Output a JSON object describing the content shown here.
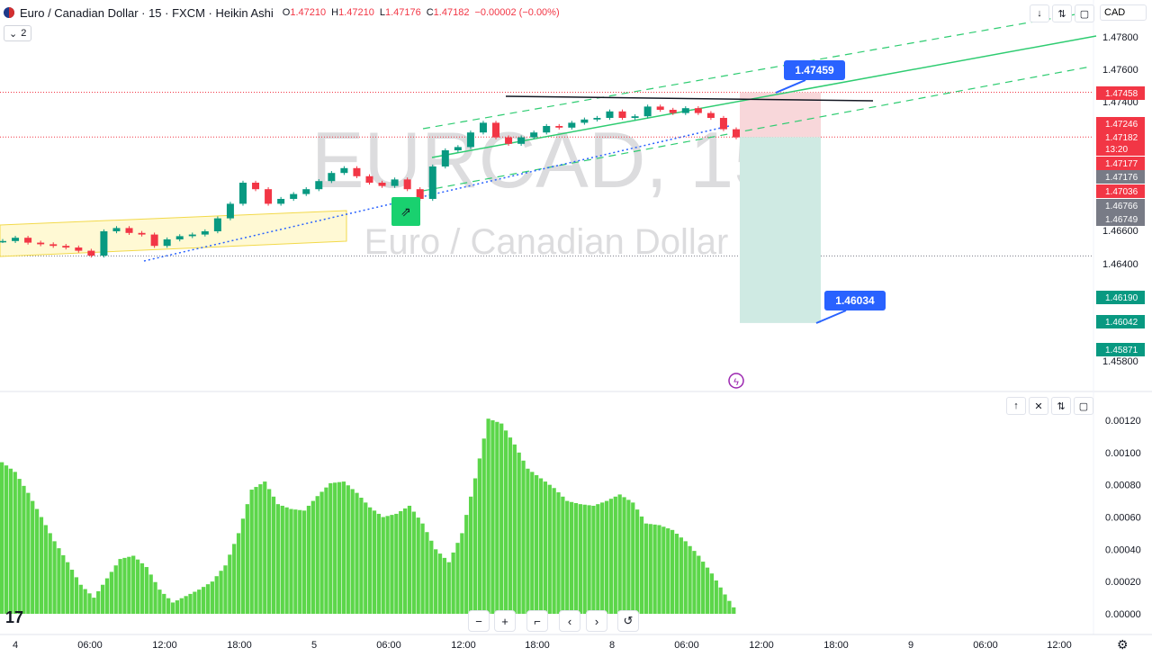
{
  "header": {
    "title": "Euro / Canadian Dollar · 15 · FXCM · Heikin Ashi",
    "open_label": "O",
    "open": "1.47210",
    "high_label": "H",
    "high": "1.47210",
    "low_label": "L",
    "low": "1.47176",
    "close_label": "C",
    "close": "1.47182",
    "change": "−0.00002 (−0.00%)",
    "indicators_count": "2",
    "currency": "CAD"
  },
  "watermark": {
    "symbol": "EURCAD, 15",
    "name": "Euro / Canadian Dollar"
  },
  "icons": {
    "down": "down-arrow-icon",
    "collapse": "collapse-icon",
    "maximize": "maximize-icon",
    "up": "up-arrow-icon",
    "close": "close-icon",
    "lightning": "lightning-icon",
    "logo": "tradingview-logo",
    "settings": "gear-icon"
  },
  "colors": {
    "up": "#089981",
    "down": "#f23645",
    "histogram": "#5cd64a",
    "channel": "#2ecc71",
    "label": "#2962ff",
    "target": "#cfeae3",
    "stop": "#f8d7da",
    "range": "#fff5b8"
  },
  "chart_data": [
    {
      "type": "candlestick",
      "style": "Heikin Ashi",
      "symbol": "EURCAD",
      "interval": "15",
      "ylim": [
        1.4576,
        1.4811
      ],
      "y_ticks": [
        "1.47800",
        "1.47600",
        "1.47400",
        "1.46600",
        "1.46400",
        "1.45800"
      ],
      "x_ticks": [
        "4",
        "06:00",
        "12:00",
        "18:00",
        "5",
        "06:00",
        "12:00",
        "18:00",
        "8",
        "06:00",
        "12:00",
        "18:00",
        "9",
        "06:00",
        "12:00"
      ],
      "price_tags": [
        {
          "value": "1.47458",
          "color": "#f23645"
        },
        {
          "value": "1.47246",
          "color": "#f23645"
        },
        {
          "value": "1.47182",
          "color": "#f23645"
        },
        {
          "value": "13:20",
          "color": "#f23645"
        },
        {
          "value": "1.47177",
          "color": "#f23645"
        },
        {
          "value": "1.47176",
          "color": "#787b86"
        },
        {
          "value": "1.47036",
          "color": "#f23645"
        },
        {
          "value": "1.46766",
          "color": "#787b86"
        },
        {
          "value": "1.46749",
          "color": "#787b86"
        },
        {
          "value": "1.46190",
          "color": "#089981"
        },
        {
          "value": "1.46042",
          "color": "#089981"
        },
        {
          "value": "1.45871",
          "color": "#089981"
        }
      ],
      "annotations": [
        {
          "text": "1.47459",
          "type": "callout"
        },
        {
          "text": "1.46034",
          "type": "callout"
        }
      ],
      "series": [
        {
          "name": "",
          "values": [
            1.4654,
            1.4656,
            1.4653,
            1.4652,
            1.4651,
            1.465,
            1.4648,
            1.4645,
            1.466,
            1.4662,
            1.4659,
            1.4658,
            1.4651,
            1.4655,
            1.4657,
            1.4658,
            1.466,
            1.4668,
            1.4677,
            1.469,
            1.4686,
            1.4677,
            1.468,
            1.4683,
            1.4686,
            1.4691,
            1.4696,
            1.4699,
            1.4694,
            1.469,
            1.4688,
            1.4692,
            1.4686,
            1.468,
            1.47,
            1.471,
            1.4712,
            1.4721,
            1.4727,
            1.4718,
            1.4714,
            1.4718,
            1.4721,
            1.4725,
            1.4724,
            1.4727,
            1.4729,
            1.473,
            1.4734,
            1.473,
            1.4731,
            1.4737,
            1.4735,
            1.4733,
            1.4736,
            1.4733,
            1.473,
            1.4723,
            1.4718
          ]
        }
      ]
    },
    {
      "type": "bar",
      "name": "",
      "ylim": [
        -5e-05,
        0.00126
      ],
      "y_ticks": [
        "0.00120",
        "0.00100",
        "0.00080",
        "0.00060",
        "0.00040",
        "0.00020",
        "0.00000"
      ],
      "values": [
        0.00094,
        0.00088,
        0.00075,
        0.0006,
        0.00045,
        0.00032,
        0.00018,
        0.0001,
        0.00022,
        0.00034,
        0.00036,
        0.00029,
        0.00015,
        7e-05,
        0.00011,
        0.00015,
        0.0002,
        0.0003,
        0.0005,
        0.00077,
        0.00082,
        0.00068,
        0.00065,
        0.00064,
        0.00073,
        0.00081,
        0.00082,
        0.00075,
        0.00066,
        0.0006,
        0.00062,
        0.00067,
        0.00056,
        0.0004,
        0.00032,
        0.0005,
        0.00084,
        0.00121,
        0.00118,
        0.00105,
        0.0009,
        0.00084,
        0.00078,
        0.0007,
        0.00068,
        0.00067,
        0.0007,
        0.00074,
        0.00069,
        0.00056,
        0.00055,
        0.00052,
        0.00045,
        0.00036,
        0.00025,
        0.00012,
        0.0
      ]
    }
  ]
}
